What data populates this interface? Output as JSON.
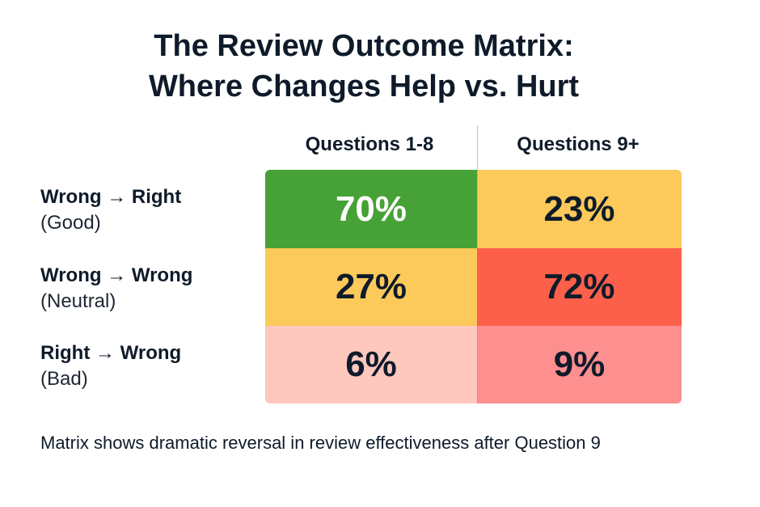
{
  "chart_data": {
    "type": "heatmap",
    "title_lines": [
      "The Review Outcome Matrix:",
      "Where Changes Help vs. Hurt"
    ],
    "columns": [
      "Questions 1-8",
      "Questions 9+"
    ],
    "rows": [
      {
        "label": "Wrong → Right",
        "sublabel": "(Good)"
      },
      {
        "label": "Wrong → Wrong",
        "sublabel": "(Neutral)"
      },
      {
        "label": "Right → Wrong",
        "sublabel": "(Bad)"
      }
    ],
    "values": [
      [
        70,
        23
      ],
      [
        27,
        72
      ],
      [
        6,
        9
      ]
    ],
    "display": [
      [
        "70%",
        "23%"
      ],
      [
        "27%",
        "72%"
      ],
      [
        "6%",
        "9%"
      ]
    ],
    "cell_colors": [
      [
        "#46a136",
        "#fcc95b"
      ],
      [
        "#fcc95b",
        "#fd604a"
      ],
      [
        "#fec8be",
        "#fd8f8e"
      ]
    ],
    "cell_text_colors": [
      [
        "#ffffff",
        "#0f1b2a"
      ],
      [
        "#0f1b2a",
        "#0f1b2a"
      ],
      [
        "#0f1b2a",
        "#0f1b2a"
      ]
    ],
    "caption": "Matrix shows dramatic reversal in review effectiveness after Question 9"
  }
}
